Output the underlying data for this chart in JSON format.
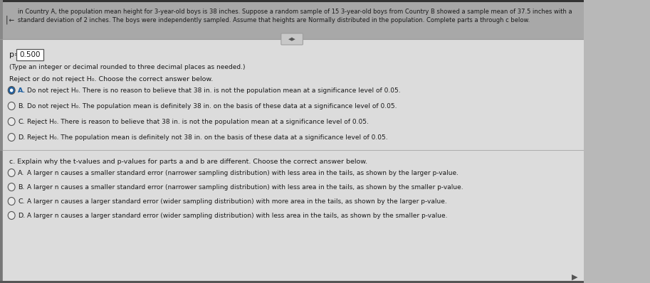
{
  "bg_color": "#b8b8b8",
  "header_bg": "#a8a8a8",
  "content_bg": "#dcdcdc",
  "header_text_line1": "in Country A, the population mean height for 3-year-old boys is 38 inches. Suppose a random sample of 15 3-year-old boys from Country B showed a sample mean of 37.5 inches with a",
  "header_text_line2": "standard deviation of 2 inches. The boys were independently sampled. Assume that heights are Normally distributed in the population. Complete parts a through c below.",
  "p_value_box": "0.500",
  "type_note": "(Type an integer or decimal rounded to three decimal places as needed.)",
  "reject_label": "Reject or do not reject H₀. Choose the correct answer below.",
  "options_reject": [
    {
      "key": "A.",
      "text": "Do not reject H₀. There is no reason to believe that 38 in. is not the population mean at a significance level of 0.05.",
      "selected": true
    },
    {
      "key": "B.",
      "text": "Do not reject H₀. The population mean is definitely 38 in. on the basis of these data at a significance level of 0.05.",
      "selected": false
    },
    {
      "key": "C.",
      "text": "Reject H₀. There is reason to believe that 38 in. is not the population mean at a significance level of 0.05.",
      "selected": false
    },
    {
      "key": "D.",
      "text": "Reject H₀. The population mean is definitely not 38 in. on the basis of these data at a significance level of 0.05.",
      "selected": false
    }
  ],
  "explain_label": "c. Explain why the t-values and p-values for parts a and b are different. Choose the correct answer below.",
  "options_explain": [
    {
      "key": "A.",
      "text": "A larger n causes a smaller standard error (narrower sampling distribution) with less area in the tails, as shown by the larger p-value.",
      "selected": false
    },
    {
      "key": "B.",
      "text": "A larger n causes a smaller standard error (narrower sampling distribution) with less area in the tails, as shown by the smaller p-value.",
      "selected": false
    },
    {
      "key": "C.",
      "text": "A larger n causes a larger standard error (wider sampling distribution) with more area in the tails, as shown by the larger p-value.",
      "selected": false
    },
    {
      "key": "D.",
      "text": "A larger n causes a larger standard error (wider sampling distribution) with less area in the tails, as shown by the smaller p-value.",
      "selected": false
    }
  ],
  "text_color": "#1a1a1a",
  "selected_fill": "#2060a0",
  "radio_edge": "#555555",
  "box_fill": "#ffffff",
  "box_edge": "#555555",
  "divider_color": "#999999",
  "left_bar_color": "#555555",
  "dark_bar_color": "#2a2a2a"
}
